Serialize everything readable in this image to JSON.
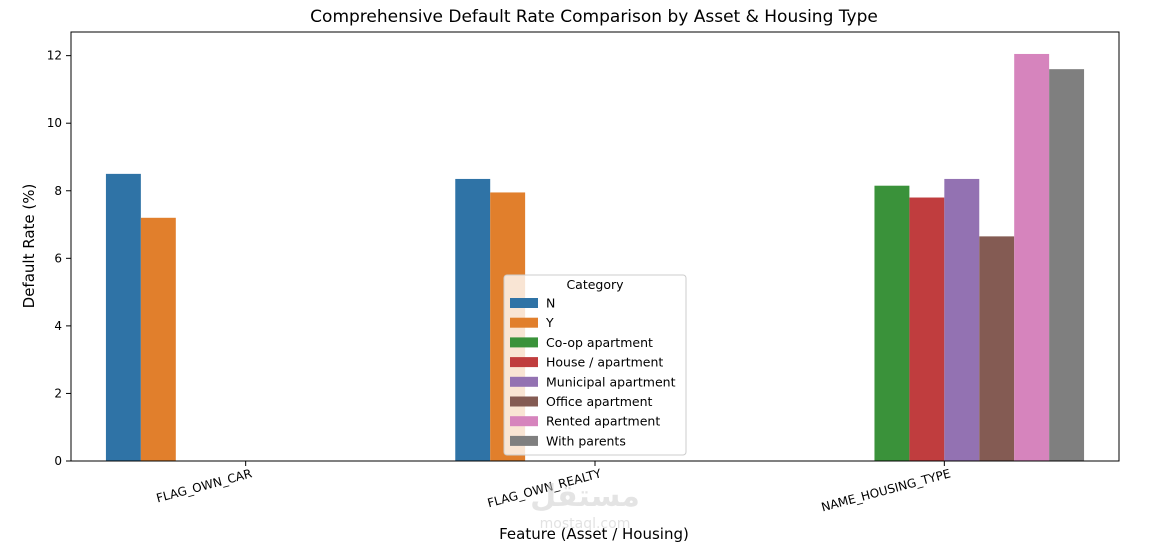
{
  "chart_data": {
    "type": "bar",
    "title": "Comprehensive Default Rate Comparison by Asset & Housing Type",
    "xlabel": "Feature (Asset / Housing)",
    "ylabel": "Default Rate (%)",
    "ylim": [
      0,
      12.7
    ],
    "yticks": [
      0,
      2,
      4,
      6,
      8,
      10,
      12
    ],
    "grid": false,
    "legend": {
      "title": "Category",
      "placement": "center",
      "entries": [
        {
          "name": "N",
          "color": "#2f73a6"
        },
        {
          "name": "Y",
          "color": "#e17f2c"
        },
        {
          "name": "Co-op apartment",
          "color": "#3a923a"
        },
        {
          "name": "House / apartment",
          "color": "#c03d3e"
        },
        {
          "name": "Municipal apartment",
          "color": "#9372b2"
        },
        {
          "name": "Office apartment",
          "color": "#845b53"
        },
        {
          "name": "Rented apartment",
          "color": "#d684bd"
        },
        {
          "name": "With parents",
          "color": "#7f7f7f"
        }
      ]
    },
    "categories": [
      "FLAG_OWN_CAR",
      "FLAG_OWN_REALTY",
      "NAME_HOUSING_TYPE"
    ],
    "hue_order": [
      "N",
      "Y",
      "Co-op apartment",
      "House / apartment",
      "Municipal apartment",
      "Office apartment",
      "Rented apartment",
      "With parents"
    ],
    "series": [
      {
        "name": "N",
        "values": [
          8.5,
          8.35,
          null
        ]
      },
      {
        "name": "Y",
        "values": [
          7.2,
          7.95,
          null
        ]
      },
      {
        "name": "Co-op apartment",
        "values": [
          null,
          null,
          8.15
        ]
      },
      {
        "name": "House / apartment",
        "values": [
          null,
          null,
          7.8
        ]
      },
      {
        "name": "Municipal apartment",
        "values": [
          null,
          null,
          8.35
        ]
      },
      {
        "name": "Office apartment",
        "values": [
          null,
          null,
          6.65
        ]
      },
      {
        "name": "Rented apartment",
        "values": [
          null,
          null,
          12.05
        ]
      },
      {
        "name": "With parents",
        "values": [
          null,
          null,
          11.6
        ]
      }
    ]
  },
  "watermark": {
    "text": "مستقل",
    "sub": "mostaql.com"
  }
}
